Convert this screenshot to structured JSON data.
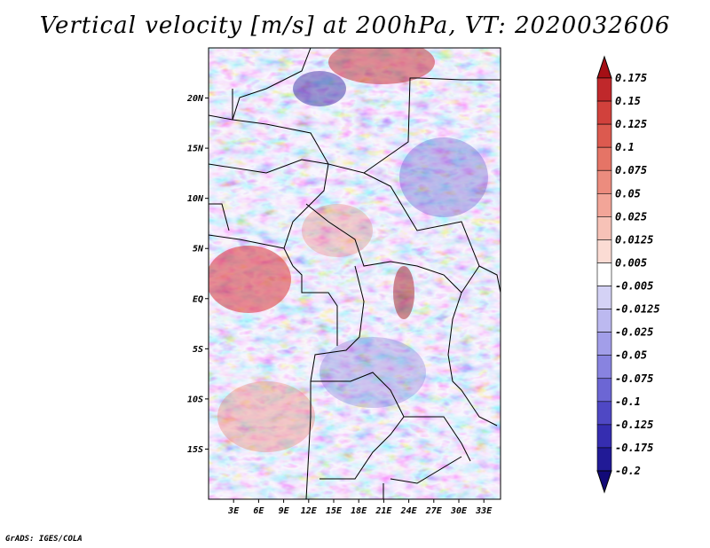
{
  "title": "Vertical velocity [m/s] at 200hPa, VT: 2020032606",
  "credit": "GrADS: IGES/COLA",
  "map": {
    "lat_labels": [
      "20N",
      "15N",
      "10N",
      "5N",
      "EQ",
      "5S",
      "10S",
      "15S"
    ],
    "lat_values": [
      20,
      15,
      10,
      5,
      0,
      -5,
      -10,
      -15
    ],
    "lon_labels": [
      "3E",
      "6E",
      "9E",
      "12E",
      "15E",
      "18E",
      "21E",
      "24E",
      "27E",
      "30E",
      "33E"
    ],
    "lon_values": [
      3,
      6,
      9,
      12,
      15,
      18,
      21,
      24,
      27,
      30,
      33
    ],
    "lon_range": [
      0,
      35
    ],
    "lat_range": [
      -20,
      25
    ]
  },
  "colorbar": {
    "labels": [
      "0.175",
      "0.15",
      "0.125",
      "0.1",
      "0.075",
      "0.05",
      "0.025",
      "0.0125",
      "0.005",
      "-0.005",
      "-0.0125",
      "-0.025",
      "-0.05",
      "-0.075",
      "-0.1",
      "-0.125",
      "-0.175",
      "-0.2"
    ],
    "colors": [
      "#a50f15",
      "#c0282b",
      "#d1413c",
      "#dc5a4f",
      "#e57466",
      "#ec8c7e",
      "#f2a598",
      "#f7c2b7",
      "#fbdcd4",
      "#ffffff",
      "#d4d2f5",
      "#bcb9f0",
      "#a29ee9",
      "#8883e0",
      "#6c66d4",
      "#4f48c4",
      "#352db0",
      "#211a96",
      "#120a78"
    ]
  }
}
